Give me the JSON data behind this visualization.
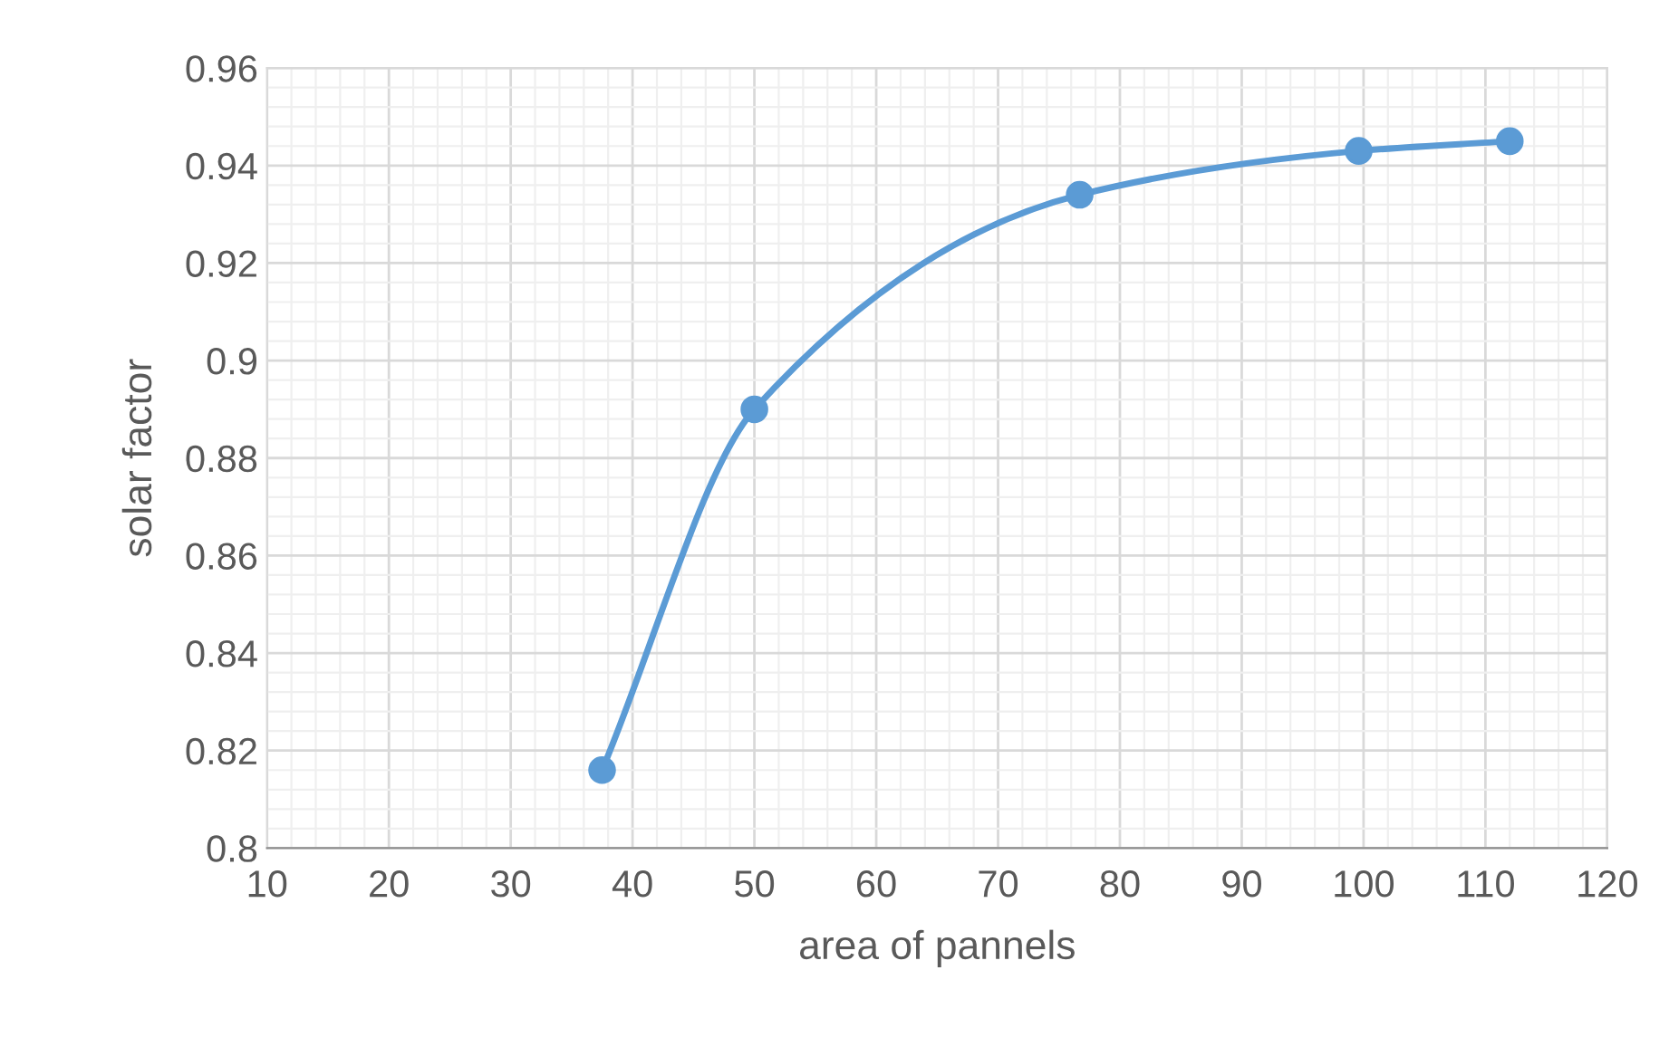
{
  "chart_data": {
    "type": "line",
    "xlabel": "area of pannels",
    "ylabel": "solar factor",
    "x": [
      37.5,
      50,
      76.7,
      99.6,
      112
    ],
    "series": [
      {
        "color": "#5b9bd5",
        "values": [
          0.816,
          0.89,
          0.934,
          0.943,
          0.945
        ]
      }
    ],
    "xlim": [
      10,
      120
    ],
    "xticks": [
      10,
      20,
      30,
      40,
      50,
      60,
      70,
      80,
      90,
      100,
      110,
      120
    ],
    "ylim": [
      0.8,
      0.96
    ],
    "yticks": [
      0.8,
      0.82,
      0.84,
      0.86,
      0.88,
      0.9,
      0.92,
      0.94,
      0.96
    ],
    "grid": true,
    "marker": "circle",
    "line_style": "solid",
    "legend": false
  }
}
